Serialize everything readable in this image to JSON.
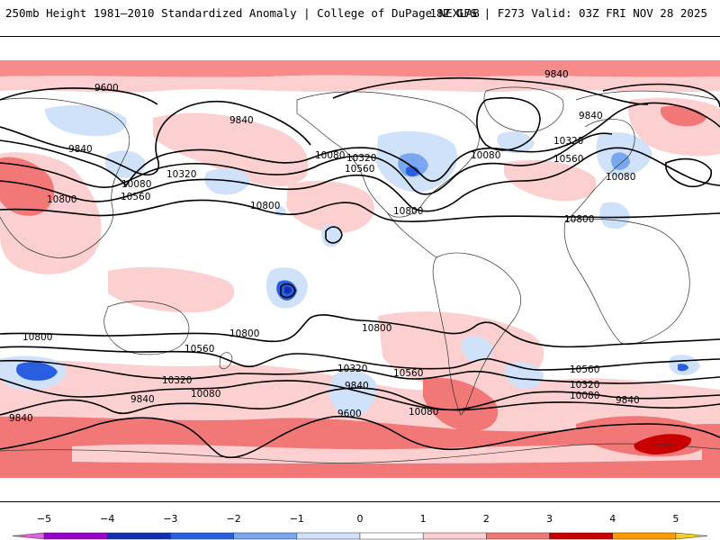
{
  "header": {
    "title": "250mb Height 1981–2010 Standardized Anomaly | College of DuPage NEXLAB",
    "run_info": "18Z GFS | F273 Valid: 03Z FRI NOV 28 2025"
  },
  "map": {
    "variable": "250mb geopotential height (dam contours) with standardized anomaly shading",
    "contour_labels": [
      {
        "id": "c1",
        "text": "9600"
      },
      {
        "id": "c2",
        "text": "9840"
      },
      {
        "id": "c3",
        "text": "9840"
      },
      {
        "id": "c4",
        "text": "9840"
      },
      {
        "id": "c5",
        "text": "9840"
      },
      {
        "id": "c6",
        "text": "10320"
      },
      {
        "id": "c7",
        "text": "10080"
      },
      {
        "id": "c8",
        "text": "10320"
      },
      {
        "id": "c9",
        "text": "10080"
      },
      {
        "id": "c10",
        "text": "10560"
      },
      {
        "id": "c11",
        "text": "10560"
      },
      {
        "id": "c12",
        "text": "10800"
      },
      {
        "id": "c13",
        "text": "10800"
      },
      {
        "id": "c14",
        "text": "10800"
      },
      {
        "id": "c15",
        "text": "10080"
      },
      {
        "id": "c16",
        "text": "10320"
      },
      {
        "id": "c17",
        "text": "10560"
      },
      {
        "id": "c18",
        "text": "10080"
      },
      {
        "id": "c19",
        "text": "10800"
      },
      {
        "id": "c20",
        "text": "10800"
      },
      {
        "id": "c21",
        "text": "10800"
      },
      {
        "id": "c22",
        "text": "10800"
      },
      {
        "id": "c23",
        "text": "10560"
      },
      {
        "id": "c24",
        "text": "10320"
      },
      {
        "id": "c25",
        "text": "10080"
      },
      {
        "id": "c26",
        "text": "10320"
      },
      {
        "id": "c27",
        "text": "10560"
      },
      {
        "id": "c28",
        "text": "10560"
      },
      {
        "id": "c29",
        "text": "10320"
      },
      {
        "id": "c30",
        "text": "10080"
      },
      {
        "id": "c31",
        "text": "9840"
      },
      {
        "id": "c32",
        "text": "9840"
      },
      {
        "id": "c33",
        "text": "9600"
      },
      {
        "id": "c34",
        "text": "10080"
      },
      {
        "id": "c35",
        "text": "9840"
      },
      {
        "id": "c36",
        "text": "9840"
      }
    ]
  },
  "colorbar": {
    "ticks": [
      "−5",
      "−4",
      "−3",
      "−2",
      "−1",
      "0",
      "1",
      "2",
      "3",
      "4",
      "5"
    ],
    "bins": [
      {
        "from": -5.5,
        "to": -5,
        "color": "#e060e0"
      },
      {
        "from": -5,
        "to": -4,
        "color": "#9900cc"
      },
      {
        "from": -4,
        "to": -3,
        "color": "#1030b0"
      },
      {
        "from": -3,
        "to": -2,
        "color": "#2a5ee0"
      },
      {
        "from": -2,
        "to": -1,
        "color": "#7aa8f0"
      },
      {
        "from": -1,
        "to": 0,
        "color": "#cfe2fa"
      },
      {
        "from": 0,
        "to": 1,
        "color": "#ffffff"
      },
      {
        "from": 1,
        "to": 2,
        "color": "#fcd0d0"
      },
      {
        "from": 2,
        "to": 3,
        "color": "#f27878"
      },
      {
        "from": 3,
        "to": 4,
        "color": "#c80000"
      },
      {
        "from": 4,
        "to": 5,
        "color": "#ff9a00"
      },
      {
        "from": 5,
        "to": 5.5,
        "color": "#f4d020"
      }
    ]
  }
}
